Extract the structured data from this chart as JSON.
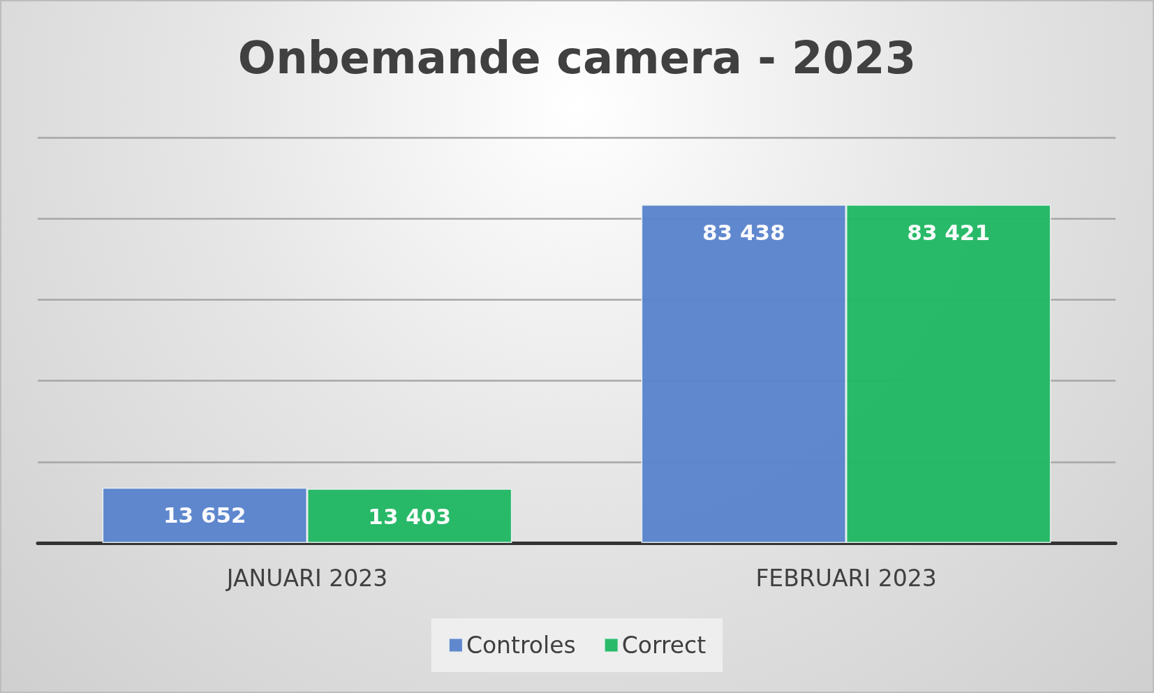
{
  "chart_data": {
    "type": "bar",
    "title": "Onbemande camera - 2023",
    "categories": [
      "JANUARI 2023",
      "FEBRUARI 2023"
    ],
    "series": [
      {
        "name": "Controles",
        "color": "#5b84cc",
        "values": [
          13652,
          83438
        ],
        "value_labels": [
          "13 652",
          "83 438"
        ]
      },
      {
        "name": "Correct",
        "color": "#22b864",
        "values": [
          13403,
          83421
        ],
        "value_labels": [
          "13 403",
          "83 421"
        ]
      }
    ],
    "tick_labels": "x",
    "grid": "y",
    "legend": "bottom"
  }
}
